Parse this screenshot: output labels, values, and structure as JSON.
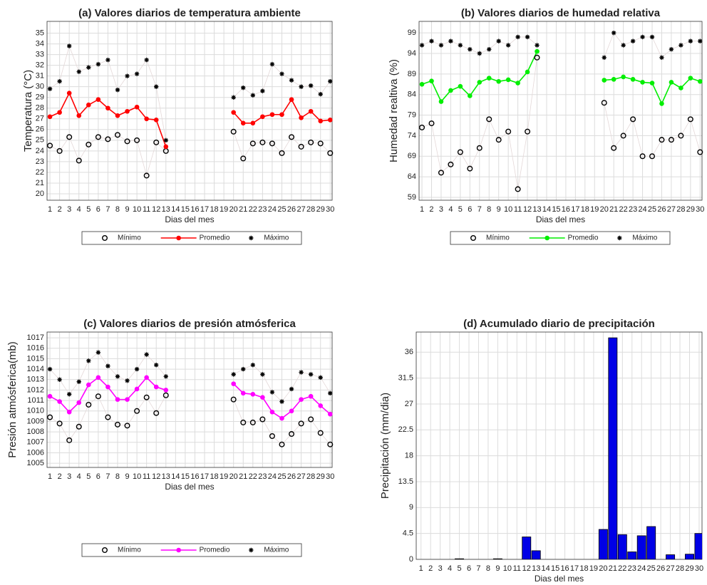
{
  "chart_data": [
    {
      "type": "line",
      "title": "(a) Valores diarios de temperatura ambiente",
      "xlabel": "Dias del mes",
      "ylabel": "Temperatura (°C)",
      "x": [
        1,
        2,
        3,
        4,
        5,
        6,
        7,
        8,
        9,
        10,
        11,
        12,
        13,
        14,
        15,
        16,
        17,
        18,
        19,
        20,
        21,
        22,
        23,
        24,
        25,
        26,
        27,
        28,
        29,
        30
      ],
      "xlim": [
        0.7,
        30.2
      ],
      "ylim": [
        19.4,
        36.1
      ],
      "yticks": [
        20,
        21,
        22,
        23,
        24,
        25,
        26,
        27,
        28,
        29,
        30,
        31,
        32,
        33,
        34,
        35
      ],
      "grid": true,
      "legend": "bottom",
      "series": [
        {
          "name": "Mínimo",
          "color": "#000000",
          "marker": "circle",
          "line": false,
          "values": [
            24.5,
            24,
            25.3,
            23.1,
            24.6,
            25.3,
            25.1,
            25.5,
            24.9,
            25,
            21.7,
            24.8,
            24,
            null,
            null,
            null,
            null,
            null,
            null,
            25.8,
            23.3,
            24.7,
            24.8,
            24.7,
            23.8,
            25.3,
            24.4,
            24.8,
            24.7,
            23.8
          ]
        },
        {
          "name": "Promedio",
          "color": "#ff0000",
          "marker": "dot",
          "line": true,
          "values": [
            27.2,
            27.6,
            29.4,
            27.3,
            28.3,
            28.8,
            28,
            27.3,
            27.7,
            28.1,
            27,
            26.9,
            24.4,
            null,
            null,
            null,
            null,
            null,
            null,
            27.6,
            26.6,
            26.6,
            27.2,
            27.4,
            27.4,
            28.8,
            27.1,
            27.7,
            26.8,
            26.9
          ]
        },
        {
          "name": "Máximo",
          "color": "#000000",
          "marker": "star",
          "line": false,
          "values": [
            29.8,
            30.5,
            33.8,
            31.4,
            31.8,
            32.1,
            32.5,
            29.7,
            31,
            31.2,
            32.5,
            30,
            25,
            null,
            null,
            null,
            null,
            null,
            null,
            29,
            29.9,
            29.2,
            29.6,
            32.1,
            31.2,
            30.6,
            30,
            30.1,
            29.3,
            30.5
          ]
        }
      ]
    },
    {
      "type": "line",
      "title": "(b) Valores diarios de humedad relativa",
      "xlabel": "Dias del mes",
      "ylabel": "Humedad realtiva (%)",
      "x": [
        1,
        2,
        3,
        4,
        5,
        6,
        7,
        8,
        9,
        10,
        11,
        12,
        13,
        14,
        15,
        16,
        17,
        18,
        19,
        20,
        21,
        22,
        23,
        24,
        25,
        26,
        27,
        28,
        29,
        30
      ],
      "xlim": [
        0.7,
        30.2
      ],
      "ylim": [
        58.3,
        101.8
      ],
      "yticks": [
        59,
        64,
        69,
        74,
        79,
        84,
        89,
        94,
        99
      ],
      "grid": true,
      "legend": "bottom",
      "series": [
        {
          "name": "Mínimo",
          "color": "#000000",
          "marker": "circle",
          "line": false,
          "values": [
            76,
            77,
            65,
            67,
            70,
            66,
            71,
            78,
            73,
            75,
            61,
            75,
            93,
            null,
            null,
            null,
            null,
            null,
            null,
            82,
            71,
            74,
            78,
            69,
            69,
            73,
            73,
            74,
            78,
            70
          ]
        },
        {
          "name": "Promedio",
          "color": "#00ee00",
          "marker": "dot",
          "line": true,
          "values": [
            86.5,
            87.3,
            82.3,
            85,
            86,
            83.7,
            87,
            88,
            87.2,
            87.6,
            86.8,
            89.5,
            94.5,
            null,
            null,
            null,
            null,
            null,
            null,
            87.5,
            87.7,
            88.3,
            87.7,
            87,
            86.8,
            81.8,
            87,
            85.6,
            88,
            87.2
          ]
        },
        {
          "name": "Máximo",
          "color": "#000000",
          "marker": "star",
          "line": false,
          "values": [
            96,
            97,
            96,
            97,
            96,
            95,
            94,
            95,
            97,
            96,
            98,
            98,
            96,
            null,
            null,
            null,
            null,
            null,
            null,
            93,
            99,
            96,
            97,
            98,
            98,
            93,
            95,
            96,
            97,
            97
          ]
        }
      ]
    },
    {
      "type": "line",
      "title": "(c) Valores diarios de presión atmósferica",
      "xlabel": "Dias del mes",
      "ylabel": "Presión atmósferica(mb)",
      "x": [
        1,
        2,
        3,
        4,
        5,
        6,
        7,
        8,
        9,
        10,
        11,
        12,
        13,
        14,
        15,
        16,
        17,
        18,
        19,
        20,
        21,
        22,
        23,
        24,
        25,
        26,
        27,
        28,
        29,
        30
      ],
      "xlim": [
        0.7,
        30.2
      ],
      "ylim": [
        1004.6,
        1017.55
      ],
      "yticks": [
        1005,
        1006,
        1007,
        1008,
        1009,
        1010,
        1011,
        1012,
        1013,
        1014,
        1015,
        1016,
        1017
      ],
      "grid": true,
      "legend": "bottom",
      "series": [
        {
          "name": "Mínimo",
          "color": "#000000",
          "marker": "circle",
          "line": false,
          "values": [
            1009.4,
            1008.8,
            1007.2,
            1008.5,
            1010.6,
            1011.4,
            1009.4,
            1008.7,
            1008.6,
            1010,
            1011.3,
            1009.8,
            1011.5,
            null,
            null,
            null,
            null,
            null,
            null,
            1011.1,
            1008.9,
            1008.9,
            1009.2,
            1007.6,
            1006.8,
            1007.8,
            1008.8,
            1009.2,
            1007.9,
            1006.8
          ]
        },
        {
          "name": "Promedio",
          "color": "#ff00ff",
          "marker": "dot",
          "line": true,
          "values": [
            1011.4,
            1010.9,
            1009.9,
            1010.8,
            1012.5,
            1013.2,
            1012.3,
            1011.1,
            1011.1,
            1012.1,
            1013.2,
            1012.3,
            1012,
            null,
            null,
            null,
            null,
            null,
            null,
            1012.6,
            1011.7,
            1011.6,
            1011.3,
            1009.9,
            1009.3,
            1010,
            1011.1,
            1011.4,
            1010.5,
            1009.7
          ]
        },
        {
          "name": "Máximo",
          "color": "#000000",
          "marker": "star",
          "line": false,
          "values": [
            1014,
            1013,
            1011.6,
            1012.8,
            1014.8,
            1015.6,
            1014.3,
            1013.3,
            1012.9,
            1014,
            1015.4,
            1014.4,
            1013.3,
            null,
            null,
            null,
            null,
            null,
            null,
            1013.5,
            1014,
            1014.4,
            1013.5,
            1011.8,
            1010.9,
            1012.1,
            1013.7,
            1013.5,
            1013.2,
            1011.7
          ]
        }
      ]
    },
    {
      "type": "bar",
      "title": "(d) Acumulado diario de precipitación",
      "xlabel": "Dias del mes",
      "ylabel": "Precipitación (mm/dia)",
      "x": [
        1,
        2,
        3,
        4,
        5,
        6,
        7,
        8,
        9,
        10,
        11,
        12,
        13,
        14,
        15,
        16,
        17,
        18,
        19,
        20,
        21,
        22,
        23,
        24,
        25,
        26,
        27,
        28,
        29,
        30
      ],
      "xlim": [
        0.5,
        30.3
      ],
      "ylim": [
        0,
        39.5
      ],
      "yticks": [
        0,
        4.5,
        9,
        13.5,
        18,
        22.5,
        27,
        31.5,
        36
      ],
      "grid": true,
      "color": "#0000e6",
      "values": [
        0,
        0,
        0,
        0,
        0.1,
        0,
        0,
        0,
        0.1,
        0,
        0,
        3.9,
        1.5,
        0,
        0,
        0,
        0,
        0,
        0,
        5.2,
        38.5,
        4.3,
        1.3,
        4.1,
        5.7,
        0,
        0.8,
        0,
        0.9,
        4.5
      ]
    }
  ]
}
